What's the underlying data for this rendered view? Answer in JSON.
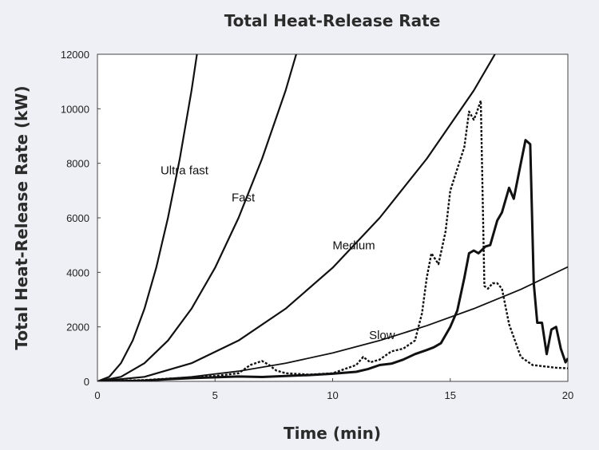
{
  "chart_data": {
    "type": "line",
    "title": "Total Heat-Release Rate",
    "xlabel": "Time (min)",
    "ylabel": "Total Heat-Release Rate (kW)",
    "xlim": [
      0,
      20
    ],
    "ylim": [
      0,
      12000
    ],
    "xticks": [
      0,
      5,
      10,
      15,
      20
    ],
    "yticks": [
      0,
      2000,
      4000,
      6000,
      8000,
      10000,
      12000
    ],
    "grid": false,
    "series": [
      {
        "name": "Ultra fast",
        "style": "solid",
        "width": 2.2,
        "x": [
          0,
          0.5,
          1,
          1.5,
          2,
          2.5,
          3,
          3.5,
          4,
          4.23
        ],
        "y": [
          0,
          167,
          667,
          1500,
          2667,
          4167,
          6000,
          8167,
          10667,
          12000
        ]
      },
      {
        "name": "Fast",
        "style": "solid",
        "width": 2.2,
        "x": [
          0,
          1,
          2,
          3,
          4,
          5,
          6,
          7,
          8,
          8.45
        ],
        "y": [
          0,
          167,
          667,
          1500,
          2667,
          4167,
          6000,
          8167,
          10667,
          12000
        ]
      },
      {
        "name": "Medium",
        "style": "solid",
        "width": 2.2,
        "x": [
          0,
          2,
          4,
          6,
          8,
          10,
          12,
          14,
          16,
          16.9
        ],
        "y": [
          0,
          167,
          667,
          1500,
          2667,
          4167,
          6000,
          8167,
          10667,
          12000
        ]
      },
      {
        "name": "Slow",
        "style": "solid",
        "width": 1.8,
        "x": [
          0,
          2,
          4,
          6,
          8,
          10,
          12,
          14,
          16,
          18,
          20
        ],
        "y": [
          0,
          42,
          167,
          375,
          667,
          1042,
          1500,
          2042,
          2667,
          3375,
          4200
        ]
      },
      {
        "name": "",
        "style": "solid",
        "width": 3,
        "x": [
          0,
          1,
          2,
          3,
          4,
          5,
          6,
          7,
          8,
          9,
          10,
          11,
          11.5,
          12,
          12.5,
          13,
          13.5,
          14,
          14.3,
          14.6,
          15,
          15.3,
          15.6,
          15.8,
          16,
          16.2,
          16.5,
          16.7,
          17,
          17.2,
          17.5,
          17.7,
          18,
          18.2,
          18.4,
          18.55,
          18.7,
          18.9,
          19.1,
          19.3,
          19.5,
          19.7,
          19.9,
          20
        ],
        "y": [
          0,
          10,
          30,
          80,
          120,
          150,
          180,
          160,
          200,
          230,
          280,
          350,
          450,
          600,
          650,
          800,
          1000,
          1150,
          1250,
          1400,
          2000,
          2600,
          3800,
          4700,
          4800,
          4700,
          4950,
          5000,
          5900,
          6200,
          7100,
          6700,
          8000,
          8850,
          8700,
          3600,
          2150,
          2150,
          1000,
          1900,
          2000,
          1200,
          700,
          850
        ]
      },
      {
        "name": "",
        "style": "dotted",
        "width": 2.4,
        "x": [
          0,
          2,
          4,
          5,
          6,
          6.5,
          7,
          7.3,
          7.6,
          8,
          9,
          10,
          11,
          11.3,
          11.6,
          12,
          12.5,
          13,
          13.5,
          13.8,
          14,
          14.2,
          14.5,
          14.8,
          15,
          15.3,
          15.6,
          15.8,
          16,
          16.1,
          16.3,
          16.45,
          16.6,
          16.8,
          17,
          17.2,
          17.5,
          18,
          18.5,
          19,
          19.5,
          20
        ],
        "y": [
          0,
          50,
          150,
          200,
          300,
          600,
          750,
          600,
          400,
          300,
          250,
          300,
          600,
          900,
          700,
          800,
          1100,
          1200,
          1500,
          2500,
          3800,
          4700,
          4300,
          5500,
          7000,
          7800,
          8600,
          9900,
          9600,
          9800,
          10300,
          3500,
          3400,
          3600,
          3600,
          3400,
          2100,
          900,
          600,
          550,
          500,
          480
        ]
      }
    ],
    "annotations": [
      {
        "text": "Ultra fast",
        "x": 3.7,
        "y": 7600
      },
      {
        "text": "Fast",
        "x": 6.2,
        "y": 6600
      },
      {
        "text": "Medium",
        "x": 10.9,
        "y": 4850
      },
      {
        "text": "Slow",
        "x": 12.1,
        "y": 1550
      }
    ]
  }
}
